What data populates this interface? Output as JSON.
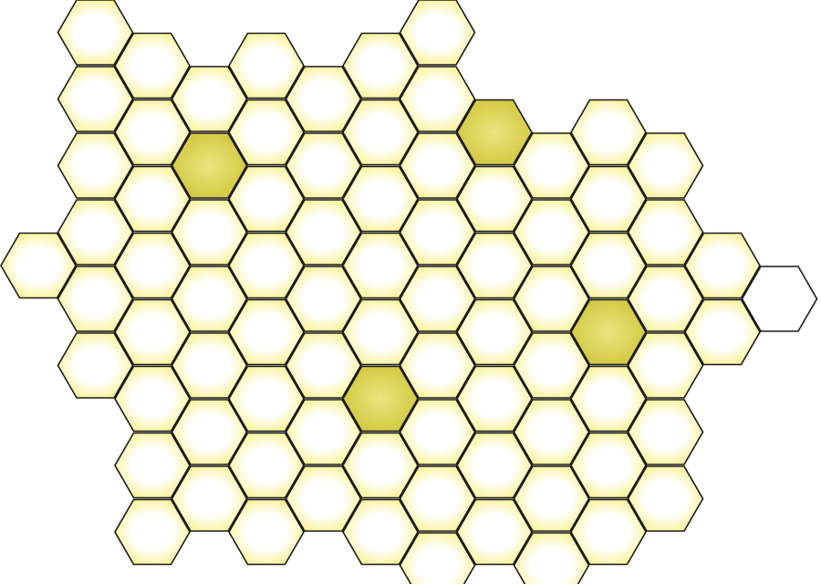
{
  "image": {
    "subject": "honeycomb",
    "colors": {
      "background": "#ffffff",
      "cell_center": "#ffffff",
      "cell_edge": "#f7ef7a",
      "highlight_center": "#ece57e",
      "highlight_edge": "#cfc43a",
      "outline": "#1a1a1a",
      "empty_cell": "#ffffff"
    }
  }
}
